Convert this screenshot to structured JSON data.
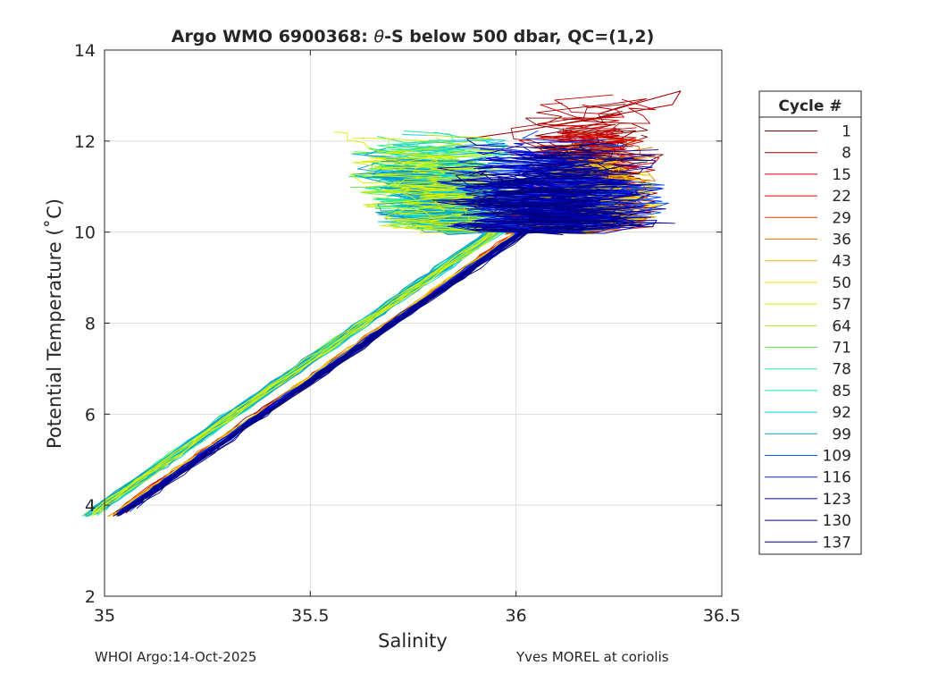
{
  "chart_data": {
    "type": "line",
    "title_prefix": "Argo WMO 6900368: ",
    "title_theta": "θ",
    "title_suffix": "-S below 500 dbar,  QC=(1,2)",
    "xlabel": "Salinity",
    "ylabel": "Potential Temperature (˚C)",
    "xlim": [
      35,
      36.5
    ],
    "ylim": [
      2,
      14
    ],
    "xticks": [
      35,
      35.5,
      36,
      36.5
    ],
    "xtick_labels": [
      "35",
      "35.5",
      "36",
      "36.5"
    ],
    "yticks": [
      2,
      4,
      6,
      8,
      10,
      12,
      14
    ],
    "ytick_labels": [
      "2",
      "4",
      "6",
      "8",
      "10",
      "12",
      "14"
    ],
    "grid": true,
    "legend_title": "Cycle #",
    "legend_position": "right-outside",
    "series": [
      {
        "name": "1",
        "color": "#7f0000"
      },
      {
        "name": "8",
        "color": "#a30000"
      },
      {
        "name": "15",
        "color": "#c80000"
      },
      {
        "name": "22",
        "color": "#e60000"
      },
      {
        "name": "29",
        "color": "#e83a00"
      },
      {
        "name": "36",
        "color": "#e87800"
      },
      {
        "name": "43",
        "color": "#ecb000"
      },
      {
        "name": "50",
        "color": "#f2e000"
      },
      {
        "name": "57",
        "color": "#d8f000"
      },
      {
        "name": "64",
        "color": "#a4f21c"
      },
      {
        "name": "71",
        "color": "#62f04e"
      },
      {
        "name": "78",
        "color": "#28ec8a"
      },
      {
        "name": "85",
        "color": "#14e2bc"
      },
      {
        "name": "92",
        "color": "#10cade"
      },
      {
        "name": "99",
        "color": "#0a9ccc"
      },
      {
        "name": "109",
        "color": "#0052ff"
      },
      {
        "name": "116",
        "color": "#0024ee"
      },
      {
        "name": "123",
        "color": "#0000cc"
      },
      {
        "name": "130",
        "color": "#00009e"
      },
      {
        "name": "137",
        "color": "#000080"
      }
    ],
    "profile_shape": {
      "deep_end": [
        35.05,
        4.0
      ],
      "mid_point": [
        35.5,
        6.75
      ],
      "upper_point": [
        36.0,
        10.0
      ],
      "inflection": [
        36.2,
        11.0
      ],
      "top_end": [
        36.4,
        13.1
      ]
    }
  },
  "footer": {
    "left": "WHOI Argo:14-Oct-2025",
    "right": "Yves MOREL at coriolis"
  }
}
